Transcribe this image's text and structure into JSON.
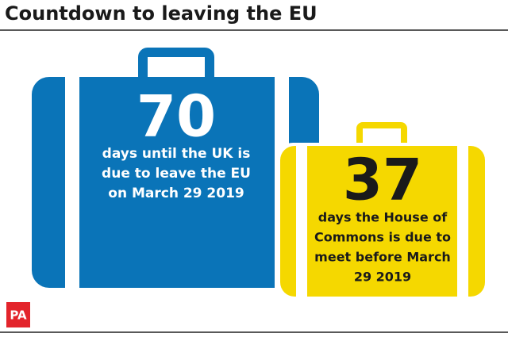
{
  "title": "Countdown to leaving the EU",
  "blue_case": {
    "number": "70",
    "lines": [
      "days until the UK is",
      "due to leave the EU",
      "on March 29 2019"
    ]
  },
  "yellow_case": {
    "number": "37",
    "lines": [
      "days the House of",
      "Commons is due to",
      "meet before March",
      "29 2019"
    ]
  },
  "logo": "PA"
}
